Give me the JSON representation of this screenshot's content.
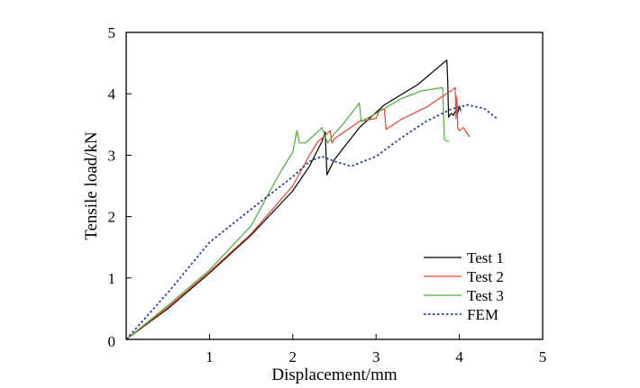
{
  "chart_data": {
    "type": "line",
    "xlabel": "Displacement/mm",
    "ylabel": "Tensile load/kN",
    "xlim": [
      0,
      5
    ],
    "ylim": [
      0,
      5
    ],
    "xticks": [
      1,
      2,
      3,
      4,
      5
    ],
    "yticks": [
      0,
      1,
      2,
      3,
      4,
      5
    ],
    "grid": false,
    "legend_position": "bottom-right",
    "series": [
      {
        "name": "Test 1",
        "color": "#000000",
        "style": "solid",
        "points": [
          [
            0,
            0
          ],
          [
            0.5,
            0.5
          ],
          [
            1,
            1.08
          ],
          [
            1.5,
            1.7
          ],
          [
            2,
            2.42
          ],
          [
            2.2,
            2.82
          ],
          [
            2.35,
            3.22
          ],
          [
            2.39,
            3.38
          ],
          [
            2.4,
            3.0
          ],
          [
            2.41,
            2.68
          ],
          [
            2.5,
            2.93
          ],
          [
            2.8,
            3.45
          ],
          [
            3.1,
            3.82
          ],
          [
            3.5,
            4.15
          ],
          [
            3.85,
            4.55
          ],
          [
            3.86,
            4.2
          ],
          [
            3.87,
            3.62
          ],
          [
            3.9,
            3.68
          ],
          [
            3.93,
            3.65
          ],
          [
            3.96,
            3.74
          ],
          [
            3.98,
            3.69
          ],
          [
            4.0,
            3.8
          ],
          [
            4.02,
            3.72
          ]
        ]
      },
      {
        "name": "Test 2",
        "color": "#e8432a",
        "style": "solid",
        "points": [
          [
            0,
            0
          ],
          [
            0.5,
            0.52
          ],
          [
            1,
            1.1
          ],
          [
            1.5,
            1.72
          ],
          [
            2,
            2.5
          ],
          [
            2.2,
            3.0
          ],
          [
            2.3,
            3.22
          ],
          [
            2.4,
            3.33
          ],
          [
            2.45,
            3.4
          ],
          [
            2.47,
            3.2
          ],
          [
            2.5,
            3.27
          ],
          [
            2.8,
            3.55
          ],
          [
            3.0,
            3.6
          ],
          [
            3.05,
            3.75
          ],
          [
            3.1,
            3.75
          ],
          [
            3.12,
            3.42
          ],
          [
            3.3,
            3.58
          ],
          [
            3.6,
            3.78
          ],
          [
            3.9,
            4.05
          ],
          [
            3.95,
            4.1
          ],
          [
            3.96,
            3.6
          ],
          [
            3.97,
            3.96
          ],
          [
            3.98,
            3.45
          ],
          [
            4.0,
            3.4
          ],
          [
            4.05,
            3.45
          ],
          [
            4.08,
            3.38
          ],
          [
            4.12,
            3.3
          ]
        ]
      },
      {
        "name": "Test 3",
        "color": "#4cad3a",
        "style": "solid",
        "points": [
          [
            0,
            0
          ],
          [
            0.5,
            0.55
          ],
          [
            1,
            1.13
          ],
          [
            1.5,
            1.85
          ],
          [
            1.7,
            2.35
          ],
          [
            1.85,
            2.72
          ],
          [
            2.0,
            3.05
          ],
          [
            2.05,
            3.4
          ],
          [
            2.08,
            3.2
          ],
          [
            2.15,
            3.2
          ],
          [
            2.3,
            3.38
          ],
          [
            2.35,
            3.45
          ],
          [
            2.42,
            3.2
          ],
          [
            2.5,
            3.35
          ],
          [
            2.6,
            3.5
          ],
          [
            2.8,
            3.85
          ],
          [
            2.82,
            3.55
          ],
          [
            3.0,
            3.68
          ],
          [
            3.3,
            3.92
          ],
          [
            3.55,
            4.05
          ],
          [
            3.8,
            4.1
          ],
          [
            3.82,
            3.25
          ],
          [
            3.88,
            3.22
          ]
        ]
      },
      {
        "name": "FEM",
        "color": "#2a3f9e",
        "style": "dotted",
        "points": [
          [
            0,
            0
          ],
          [
            0.5,
            0.76
          ],
          [
            1,
            1.58
          ],
          [
            1.5,
            2.12
          ],
          [
            2,
            2.65
          ],
          [
            2.2,
            2.9
          ],
          [
            2.35,
            2.98
          ],
          [
            2.5,
            2.9
          ],
          [
            2.7,
            2.82
          ],
          [
            3.0,
            2.98
          ],
          [
            3.3,
            3.28
          ],
          [
            3.6,
            3.55
          ],
          [
            3.9,
            3.75
          ],
          [
            4.1,
            3.82
          ],
          [
            4.3,
            3.76
          ],
          [
            4.45,
            3.6
          ]
        ]
      }
    ]
  }
}
